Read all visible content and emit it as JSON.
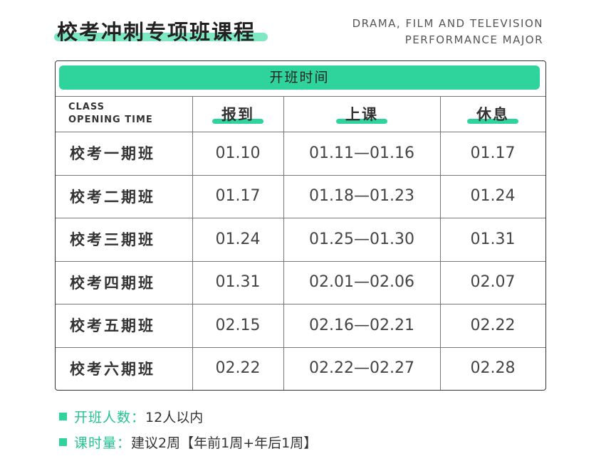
{
  "header": {
    "title": "校考冲刺专项班课程",
    "subtitle": [
      "DRAMA, FILM AND TELEVISION",
      "PERFORMANCE MAJOR"
    ]
  },
  "table": {
    "banner": "开班时间",
    "columns": [
      "CLASS\nOPENING TIME",
      "报到",
      "上课",
      "休息"
    ],
    "rows": [
      [
        "校考一期班",
        "01.10",
        "01.11—01.16",
        "01.17"
      ],
      [
        "校考二期班",
        "01.17",
        "01.18—01.23",
        "01.24"
      ],
      [
        "校考三期班",
        "01.24",
        "01.25—01.30",
        "01.31"
      ],
      [
        "校考四期班",
        "01.31",
        "02.01—02.06",
        "02.07"
      ],
      [
        "校考五期班",
        "02.15",
        "02.16—02.21",
        "02.22"
      ],
      [
        "校考六期班",
        "02.22",
        "02.22—02.27",
        "02.28"
      ]
    ]
  },
  "notes": [
    {
      "label": "开班人数：",
      "text": "12人以内"
    },
    {
      "label": "课时量：",
      "text": "建议2周【年前1周+年后1周】"
    }
  ]
}
